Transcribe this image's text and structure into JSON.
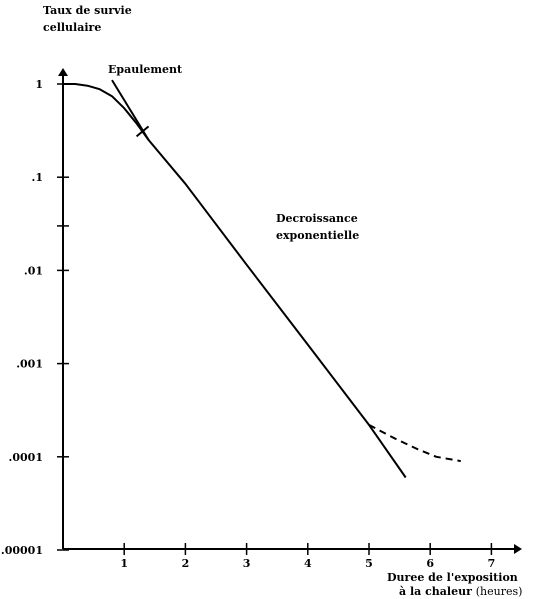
{
  "chart_data": {
    "type": "line",
    "ylabel_line1": "Taux de survie",
    "ylabel_line2": "cellulaire",
    "xlabel_line1": "Duree de l'exposition",
    "xlabel_line2_bold": "à la chaleur",
    "xlabel_unit": "(heures)",
    "y_scale": "log",
    "ylim": [
      1e-05,
      1
    ],
    "xlim": [
      0,
      7
    ],
    "x_ticks": [
      "1",
      "2",
      "3",
      "4",
      "5",
      "6",
      "7"
    ],
    "x_tick_values": [
      1,
      2,
      3,
      4,
      5,
      6,
      7
    ],
    "y_ticks": [
      "1",
      ".1",
      ".01",
      ".001",
      ".0001",
      ".00001"
    ],
    "y_tick_values": [
      1,
      0.1,
      0.01,
      0.001,
      0.0001,
      1e-05
    ],
    "annotations": {
      "shoulder": "Epaulement",
      "decay_line1": "Decroissance",
      "decay_line2": "exponentielle"
    },
    "series": [
      {
        "style": "solid",
        "x": [
          0,
          0.2,
          0.4,
          0.6,
          0.8,
          1.0,
          1.2,
          1.4,
          2.0,
          3.0,
          4.0,
          5.0,
          5.6
        ],
        "y": [
          1,
          1,
          0.96,
          0.88,
          0.74,
          0.55,
          0.38,
          0.25,
          0.085,
          0.0115,
          0.0016,
          0.00022,
          6e-05
        ]
      },
      {
        "style": "solid",
        "x": [
          0.8,
          1.4
        ],
        "y": [
          1.1,
          0.25
        ]
      },
      {
        "style": "dashed",
        "x": [
          5.0,
          5.4,
          5.8,
          6.1,
          6.5
        ],
        "y": [
          0.00022,
          0.00016,
          0.00012,
          0.0001,
          9e-05
        ]
      }
    ]
  }
}
